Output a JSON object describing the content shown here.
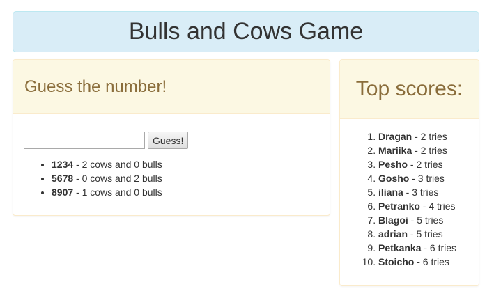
{
  "header": {
    "title": "Bulls and Cows Game"
  },
  "guess_panel": {
    "heading": "Guess the number!",
    "input_value": "",
    "button_label": "Guess!",
    "results": [
      {
        "number": "1234",
        "text": " - 2 cows and 0 bulls"
      },
      {
        "number": "5678",
        "text": " - 0 cows and 2 bulls"
      },
      {
        "number": "8907",
        "text": " - 1 cows and 0 bulls"
      }
    ]
  },
  "scores_panel": {
    "heading": "Top scores:",
    "scores": [
      {
        "name": "Dragan",
        "text": " - 2 tries"
      },
      {
        "name": "Mariika",
        "text": " - 2 tries"
      },
      {
        "name": "Pesho",
        "text": " - 2 tries"
      },
      {
        "name": "Gosho",
        "text": " - 3 tries"
      },
      {
        "name": "iliana",
        "text": " - 3 tries"
      },
      {
        "name": "Petranko",
        "text": " - 4 tries"
      },
      {
        "name": "Blagoi",
        "text": " - 5 tries"
      },
      {
        "name": "adrian",
        "text": " - 5 tries"
      },
      {
        "name": "Petkanka",
        "text": " - 6 tries"
      },
      {
        "name": "Stoicho",
        "text": " - 6 tries"
      }
    ]
  },
  "colors": {
    "title_bg": "#d9edf7",
    "panel_heading_bg": "#fcf8e3",
    "panel_heading_text": "#8a6d3b",
    "panel_border": "#faebcc"
  }
}
